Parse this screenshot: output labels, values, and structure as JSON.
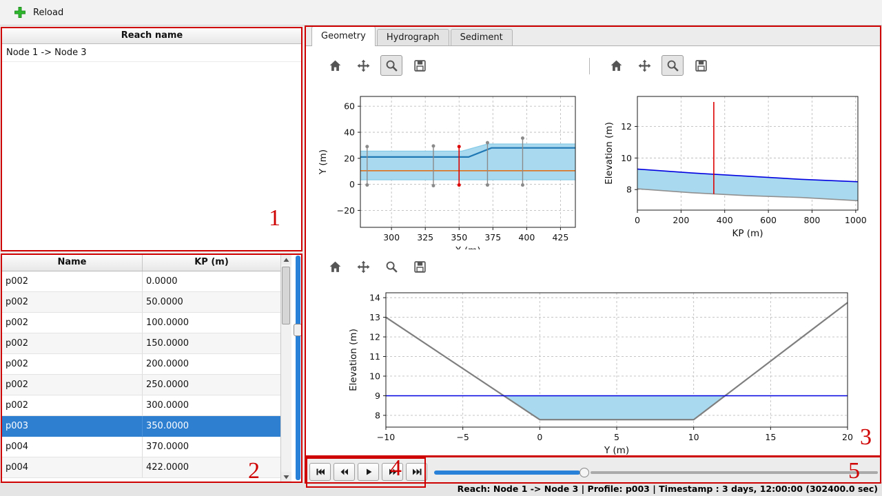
{
  "window": {
    "toolbar": {
      "reload_label": "Reload"
    },
    "statusbar": "Reach: Node 1 -> Node 3 | Profile: p003 | Timestamp : 3 days, 12:00:00 (302400.0 sec)"
  },
  "reach_panel": {
    "header": "Reach name",
    "items": [
      "Node 1 -> Node 3"
    ]
  },
  "profile_panel": {
    "columns": [
      "Name",
      "KP (m)"
    ],
    "rows": [
      [
        "p002",
        "0.0000"
      ],
      [
        "p002",
        "50.0000"
      ],
      [
        "p002",
        "100.0000"
      ],
      [
        "p002",
        "150.0000"
      ],
      [
        "p002",
        "200.0000"
      ],
      [
        "p002",
        "250.0000"
      ],
      [
        "p002",
        "300.0000"
      ],
      [
        "p003",
        "350.0000"
      ],
      [
        "p004",
        "370.0000"
      ],
      [
        "p004",
        "422.0000"
      ]
    ],
    "selected_index": 7
  },
  "tabs": [
    {
      "label": "Geometry",
      "active": true
    },
    {
      "label": "Hydrograph",
      "active": false
    },
    {
      "label": "Sediment",
      "active": false
    }
  ],
  "mpl_toolbars": [
    {
      "buttons": [
        "home",
        "pan",
        "zoom",
        "save"
      ],
      "pressed": "zoom"
    },
    {
      "buttons": [
        "home",
        "pan",
        "zoom",
        "save"
      ],
      "pressed": "zoom"
    },
    {
      "buttons": [
        "home",
        "pan",
        "zoom",
        "save"
      ],
      "pressed": null
    }
  ],
  "playback": {
    "buttons": [
      "skip-start",
      "seek-back",
      "play",
      "seek-forward",
      "skip-end"
    ]
  },
  "annotations": {
    "labels": [
      "1",
      "2",
      "3",
      "4",
      "5"
    ]
  },
  "colors": {
    "selection_blue": "#2f7fd1",
    "annotation_red": "#cf0000",
    "slider_blue": "#2a81d8",
    "chart_fill_blue": "#a9d9ee"
  },
  "chart_data": [
    {
      "type": "line",
      "title": "",
      "xlabel": "X (m)",
      "ylabel": "Y (m)",
      "xlim": [
        277,
        436
      ],
      "ylim": [
        -33,
        67.5
      ],
      "xticks": [
        300,
        325,
        350,
        375,
        400,
        425
      ],
      "yticks": [
        -20,
        0,
        20,
        40,
        60
      ],
      "grid": true,
      "series": [
        {
          "name": "channel-band",
          "kind": "polygon",
          "color": "#a9d9ee",
          "points": [
            [
              277,
              25.5
            ],
            [
              352,
              25.5
            ],
            [
              371,
              31
            ],
            [
              436,
              31
            ],
            [
              436,
              3.5
            ],
            [
              277,
              3.5
            ]
          ]
        },
        {
          "name": "band-upper-edge",
          "kind": "line",
          "color": "#86cbe8",
          "width": 1.3,
          "points": [
            [
              277,
              25.5
            ],
            [
              352,
              25.5
            ],
            [
              371,
              31
            ],
            [
              436,
              31
            ]
          ]
        },
        {
          "name": "band-lower-edge",
          "kind": "line",
          "color": "#86cbe8",
          "width": 1.3,
          "points": [
            [
              277,
              3.5
            ],
            [
              436,
              3.5
            ]
          ]
        },
        {
          "name": "centerline",
          "kind": "line",
          "color": "#1f77b4",
          "width": 2.2,
          "points": [
            [
              277,
              21
            ],
            [
              357,
              21
            ],
            [
              374,
              28
            ],
            [
              436,
              28
            ]
          ]
        },
        {
          "name": "reference-line",
          "kind": "line",
          "color": "#e0711c",
          "width": 1.7,
          "points": [
            [
              277,
              10.5
            ],
            [
              436,
              10.5
            ]
          ]
        },
        {
          "name": "profile-marker-1",
          "kind": "vline",
          "color": "#8a8a8a",
          "width": 1.4,
          "dots": true,
          "x": 282,
          "y0": -0.5,
          "y1": 29
        },
        {
          "name": "profile-marker-2",
          "kind": "vline",
          "color": "#8a8a8a",
          "width": 1.4,
          "dots": true,
          "x": 331,
          "y0": -1,
          "y1": 29.5
        },
        {
          "name": "selected-profile-marker",
          "kind": "vline",
          "color": "#dd0000",
          "width": 1.6,
          "dots": true,
          "x": 350,
          "y0": -0.5,
          "y1": 29
        },
        {
          "name": "profile-marker-3",
          "kind": "vline",
          "color": "#8a8a8a",
          "width": 1.4,
          "dots": true,
          "x": 371,
          "y0": -0.5,
          "y1": 32
        },
        {
          "name": "profile-marker-4",
          "kind": "vline",
          "color": "#8a8a8a",
          "width": 1.4,
          "dots": true,
          "x": 397,
          "y0": -0.5,
          "y1": 35.5
        }
      ]
    },
    {
      "type": "area",
      "title": "",
      "xlabel": "KP (m)",
      "ylabel": "Elevation (m)",
      "xlim": [
        0,
        1010
      ],
      "ylim": [
        6.7,
        13.9
      ],
      "xticks": [
        0,
        200,
        400,
        600,
        800,
        1000
      ],
      "yticks": [
        8,
        10,
        12
      ],
      "grid": true,
      "series": [
        {
          "name": "water-fill",
          "kind": "polygon",
          "color": "#a9d9ee",
          "points": [
            [
              0,
              9.3
            ],
            [
              250,
              9.05
            ],
            [
              500,
              8.85
            ],
            [
              750,
              8.65
            ],
            [
              1010,
              8.5
            ],
            [
              1010,
              7.3
            ],
            [
              750,
              7.5
            ],
            [
              500,
              7.62
            ],
            [
              250,
              7.8
            ],
            [
              0,
              8.05
            ]
          ]
        },
        {
          "name": "water-surface",
          "kind": "line",
          "color": "#0000e0",
          "width": 1.6,
          "points": [
            [
              0,
              9.3
            ],
            [
              250,
              9.05
            ],
            [
              500,
              8.85
            ],
            [
              750,
              8.65
            ],
            [
              1010,
              8.5
            ]
          ]
        },
        {
          "name": "bed-level",
          "kind": "line",
          "color": "#909090",
          "width": 1.6,
          "points": [
            [
              0,
              8.05
            ],
            [
              250,
              7.8
            ],
            [
              500,
              7.62
            ],
            [
              750,
              7.5
            ],
            [
              1010,
              7.3
            ]
          ]
        },
        {
          "name": "selected-profile-marker",
          "kind": "vline",
          "color": "#dd0000",
          "width": 1.6,
          "dots": false,
          "x": 350,
          "y0": 7.72,
          "y1": 13.55
        }
      ]
    },
    {
      "type": "area",
      "title": "",
      "xlabel": "Y (m)",
      "ylabel": "Elevation (m)",
      "xlim": [
        -10,
        20
      ],
      "ylim": [
        7.4,
        14.25
      ],
      "xticks": [
        -10,
        -5,
        0,
        5,
        10,
        15,
        20
      ],
      "yticks": [
        8,
        9,
        10,
        11,
        12,
        13,
        14
      ],
      "grid": true,
      "series": [
        {
          "name": "water-fill",
          "kind": "polygon",
          "color": "#a9d9ee",
          "points": [
            [
              -2.34,
              9
            ],
            [
              0,
              7.78
            ],
            [
              10,
              7.78
            ],
            [
              12.04,
              9
            ]
          ]
        },
        {
          "name": "cross-section-bed",
          "kind": "line",
          "color": "#7f7f7f",
          "width": 2.2,
          "points": [
            [
              -10,
              13.0
            ],
            [
              0,
              7.78
            ],
            [
              10,
              7.78
            ],
            [
              20,
              13.75
            ]
          ]
        },
        {
          "name": "water-level",
          "kind": "line",
          "color": "#0000e0",
          "width": 1.6,
          "points": [
            [
              -10,
              9
            ],
            [
              20,
              9
            ]
          ]
        }
      ]
    }
  ]
}
